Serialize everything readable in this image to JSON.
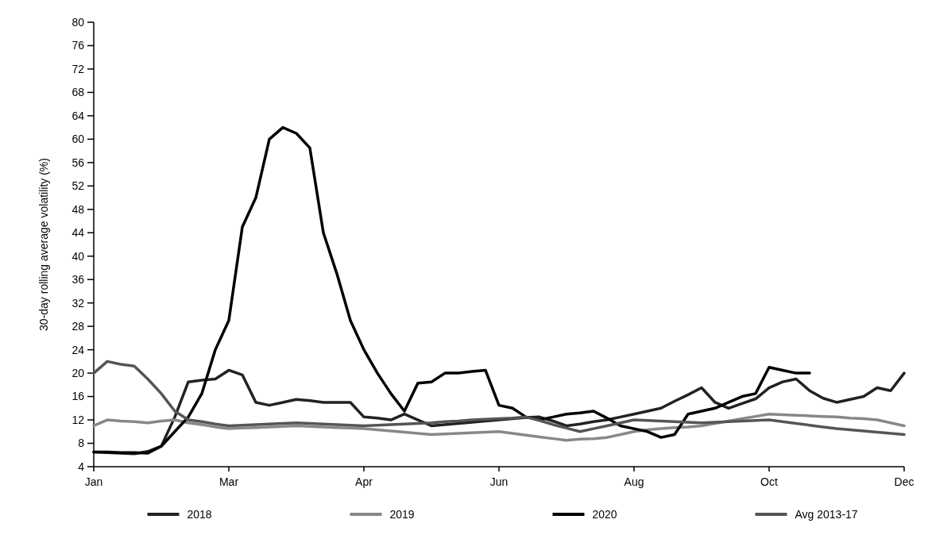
{
  "chart_data": {
    "type": "line",
    "ylabel": "30-day rolling average volatility (%)",
    "categories": [
      "Jan",
      null,
      null,
      null,
      null,
      null,
      null,
      null,
      null,
      null,
      "Mar",
      null,
      null,
      null,
      null,
      null,
      null,
      null,
      null,
      null,
      "Apr",
      null,
      null,
      null,
      null,
      null,
      null,
      null,
      null,
      null,
      "Jun",
      null,
      null,
      null,
      null,
      null,
      null,
      null,
      null,
      null,
      "Aug",
      null,
      null,
      null,
      null,
      null,
      null,
      null,
      null,
      null,
      "Oct",
      null,
      null,
      null,
      null,
      null,
      null,
      null,
      null,
      null,
      "Dec"
    ],
    "ylim": [
      4,
      80
    ],
    "yticks": [
      4,
      8,
      12,
      16,
      20,
      24,
      28,
      32,
      36,
      40,
      44,
      48,
      52,
      56,
      60,
      64,
      68,
      72,
      76,
      80
    ],
    "grid": false,
    "legend": "bottom",
    "marker": "none",
    "line_style": "solid",
    "series": [
      {
        "name": "2018",
        "color": "#222222",
        "values": [
          6.5,
          6.4,
          6.3,
          6.2,
          6.6,
          7.5,
          12.5,
          18.5,
          18.8,
          19,
          20.5,
          19.7,
          15,
          14.5,
          15,
          15.5,
          15.3,
          15,
          15,
          15,
          12.5,
          12.3,
          12,
          13,
          12,
          11,
          11.2,
          11.4,
          11.6,
          11.8,
          12,
          12.2,
          12.4,
          12.5,
          11.8,
          11,
          11.3,
          11.7,
          12,
          12.5,
          13,
          13.5,
          14,
          15.2,
          16.3,
          17.5,
          15,
          14,
          14.8,
          15.6,
          17.5,
          18.5,
          19,
          17,
          15.7,
          15,
          15.5,
          16,
          17.5,
          17,
          20
        ]
      },
      {
        "name": "2019",
        "color": "#888888",
        "values": [
          11,
          12,
          11.8,
          11.7,
          11.5,
          11.8,
          12,
          11.5,
          11.2,
          10.8,
          10.5,
          10.6,
          10.7,
          10.8,
          10.9,
          11,
          10.9,
          10.8,
          10.7,
          10.6,
          10.5,
          10.3,
          10.1,
          9.9,
          9.7,
          9.5,
          9.6,
          9.7,
          9.8,
          9.9,
          10,
          9.7,
          9.4,
          9.1,
          8.8,
          8.5,
          8.7,
          8.8,
          9,
          9.5,
          10,
          10.3,
          10.5,
          10.7,
          10.8,
          11,
          11.4,
          11.8,
          12.2,
          12.6,
          13,
          12.9,
          12.8,
          12.7,
          12.6,
          12.5,
          12.3,
          12.2,
          12,
          11.5,
          11
        ]
      },
      {
        "name": "2020",
        "color": "#000000",
        "values": [
          6.5,
          6.5,
          6.4,
          6.4,
          6.3,
          7.5,
          10,
          12.5,
          16.5,
          24,
          29,
          45,
          50,
          60,
          62,
          61,
          58.5,
          44,
          37,
          29,
          24,
          20,
          16.5,
          13.5,
          18.3,
          18.5,
          20,
          20,
          20.3,
          20.5,
          14.5,
          14,
          12.5,
          12,
          12.5,
          13,
          13.2,
          13.5,
          12.3,
          11,
          10.5,
          10,
          9,
          9.5,
          13,
          13.5,
          14,
          15,
          16,
          16.5,
          21,
          20.5,
          20,
          20,
          null,
          null,
          null,
          null,
          null,
          null,
          null
        ]
      },
      {
        "name": "Avg 2013-17",
        "color": "#555555",
        "values": [
          20,
          22,
          21.5,
          21.2,
          19,
          16.5,
          13.5,
          12,
          11.7,
          11.3,
          11,
          11.1,
          11.2,
          11.3,
          11.4,
          11.5,
          11.4,
          11.3,
          11.2,
          11.1,
          11,
          11.1,
          11.2,
          11.3,
          11.4,
          11.5,
          11.7,
          11.8,
          12,
          12.1,
          12.2,
          12.3,
          12.5,
          11.9,
          11.2,
          10.6,
          10,
          10.5,
          11,
          11.5,
          12,
          11.9,
          11.8,
          11.7,
          11.6,
          11.5,
          11.6,
          11.7,
          11.8,
          11.9,
          12,
          11.7,
          11.4,
          11.1,
          10.8,
          10.5,
          10.3,
          10.1,
          9.9,
          9.7,
          9.5
        ]
      }
    ]
  }
}
